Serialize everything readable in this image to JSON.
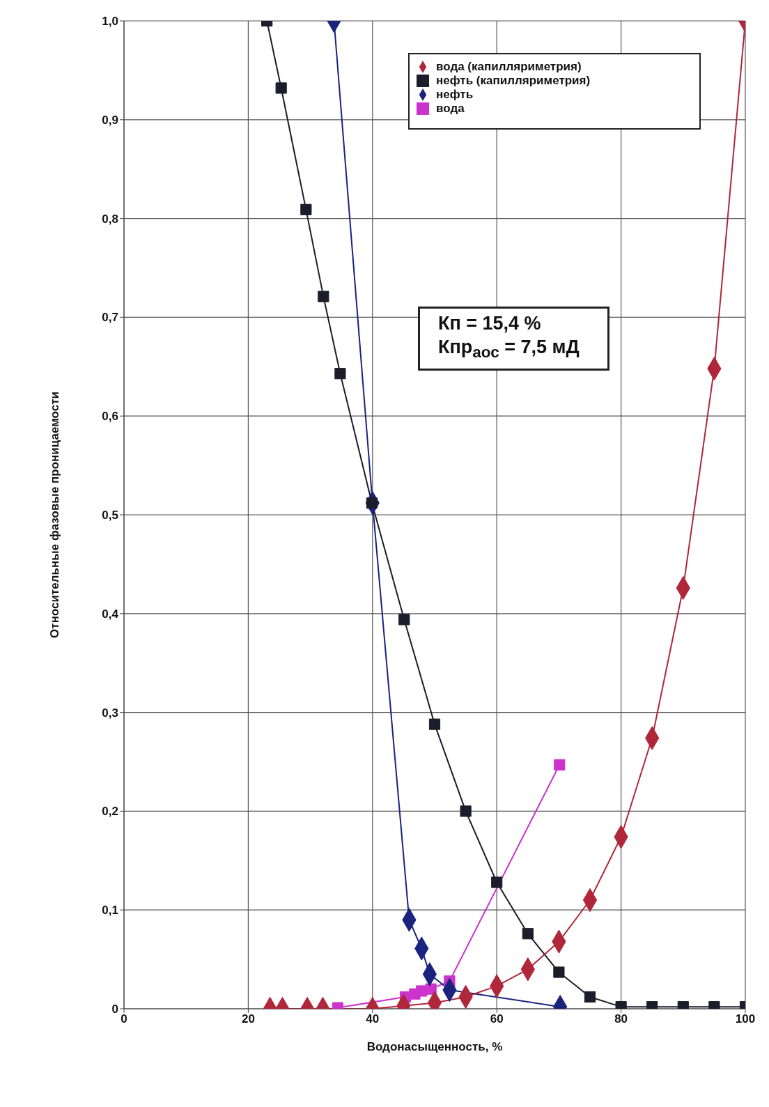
{
  "chart_data": {
    "type": "line",
    "xlabel": "Водонасыщенность, %",
    "ylabel": "Относительные фазовые проницаемости",
    "xlim": [
      0,
      100
    ],
    "xticks": [
      0,
      20,
      40,
      60,
      80,
      100
    ],
    "ylim": [
      0,
      1
    ],
    "yticks": [
      0,
      {
        "value": 0.1,
        "label": "0,1"
      },
      {
        "value": 0.2,
        "label": "0,2"
      },
      {
        "value": 0.3,
        "label": "0,3"
      },
      {
        "value": 0.4,
        "label": "0,4"
      },
      {
        "value": 0.5,
        "label": "0,5"
      },
      {
        "value": 0.6,
        "label": "0,6"
      },
      {
        "value": 0.7,
        "label": "0,7"
      },
      {
        "value": 0.8,
        "label": "0,8"
      },
      {
        "value": 0.9,
        "label": "0,9"
      },
      {
        "value": 1,
        "label": "1,0"
      }
    ],
    "grid": true,
    "legend": "top right",
    "line_style": "solid",
    "annotations": [
      "Кп = 15,4 %",
      "Кпр$_{аос}$ = 7,5 мД"
    ],
    "series": [
      {
        "name": "вода (капилляриметрия)",
        "color": "#b0263a",
        "marker": "diamond",
        "x": [
          23.5,
          25.5,
          29.5,
          32,
          40,
          45,
          50,
          55,
          60,
          65,
          70,
          75,
          80,
          85,
          90,
          95,
          100
        ],
        "values": [
          0,
          0,
          0,
          0,
          0,
          0.003,
          0.006,
          0.012,
          0.023,
          0.04,
          0.068,
          0.11,
          0.174,
          0.274,
          0.426,
          0.648,
          1
        ]
      },
      {
        "name": "нефть (капилляриметрия)",
        "color": "#1c1c2a",
        "marker": "square",
        "x": [
          23,
          25.3,
          29.3,
          32.1,
          34.8,
          39.9,
          45.1,
          50,
          55,
          60,
          65,
          70,
          75,
          80,
          85,
          90,
          95,
          100
        ],
        "values": [
          1,
          0.932,
          0.809,
          0.721,
          0.643,
          0.512,
          0.394,
          0.288,
          0.2,
          0.128,
          0.076,
          0.037,
          0.012,
          0.002,
          0.002,
          0.002,
          0.002,
          0.002
        ]
      },
      {
        "name": "нефть",
        "color": "#1a237e",
        "marker": "diamond",
        "x": [
          33.8,
          40,
          45.9,
          47.9,
          49.2,
          52.4,
          70.2
        ],
        "values": [
          1,
          0.512,
          0.09,
          0.061,
          0.035,
          0.019,
          0.002
        ]
      },
      {
        "name": "вода",
        "color": "#cc33cc",
        "marker": "square",
        "x": [
          34.4,
          45.3,
          46.8,
          47.9,
          49.4,
          52.4,
          70.1
        ],
        "values": [
          0.001,
          0.012,
          0.015,
          0.018,
          0.02,
          0.028,
          0.247
        ]
      }
    ]
  }
}
